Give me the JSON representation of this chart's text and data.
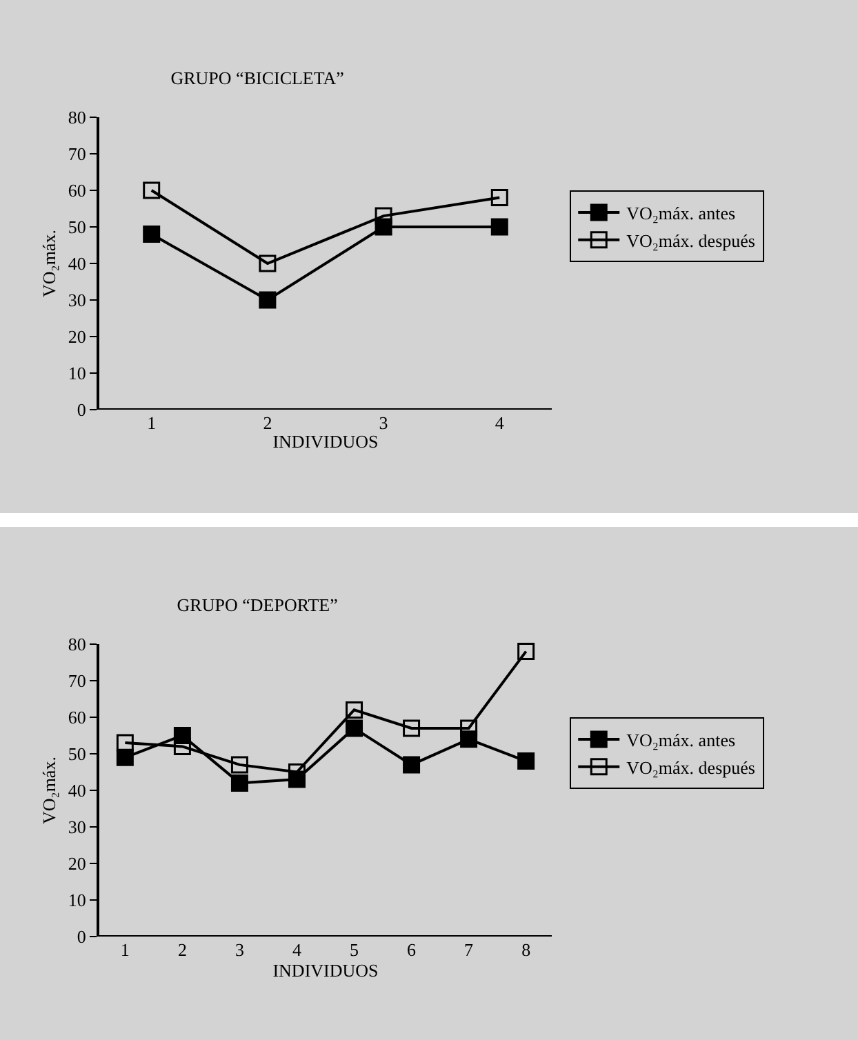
{
  "chart_data": [
    {
      "type": "line",
      "title": "GRUPO “BICICLETA”",
      "xlabel": "INDIVIDUOS",
      "ylabel": "VO₂máx.",
      "categories": [
        "1",
        "2",
        "3",
        "4"
      ],
      "ylim": [
        0,
        80
      ],
      "yticks": [
        0,
        10,
        20,
        30,
        40,
        50,
        60,
        70,
        80
      ],
      "grid": false,
      "legend": "right",
      "marker": "square",
      "series": [
        {
          "name": "VO₂máx. antes",
          "color": "#000000",
          "values": [
            48,
            30,
            50,
            50
          ]
        },
        {
          "name": "VO₂máx. después",
          "color": "#000000",
          "values": [
            60,
            40,
            53,
            58
          ]
        }
      ]
    },
    {
      "type": "line",
      "title": "GRUPO “DEPORTE”",
      "xlabel": "INDIVIDUOS",
      "ylabel": "VO₂máx.",
      "categories": [
        "1",
        "2",
        "3",
        "4",
        "5",
        "6",
        "7",
        "8"
      ],
      "ylim": [
        0,
        80
      ],
      "yticks": [
        0,
        10,
        20,
        30,
        40,
        50,
        60,
        70,
        80
      ],
      "grid": false,
      "legend": "right",
      "marker": "square",
      "series": [
        {
          "name": "VO₂máx. antes",
          "color": "#000000",
          "values": [
            49,
            55,
            42,
            43,
            57,
            47,
            54,
            48
          ]
        },
        {
          "name": "VO₂máx. después",
          "color": "#000000",
          "values": [
            53,
            52,
            47,
            45,
            62,
            57,
            57,
            78
          ]
        }
      ]
    }
  ]
}
